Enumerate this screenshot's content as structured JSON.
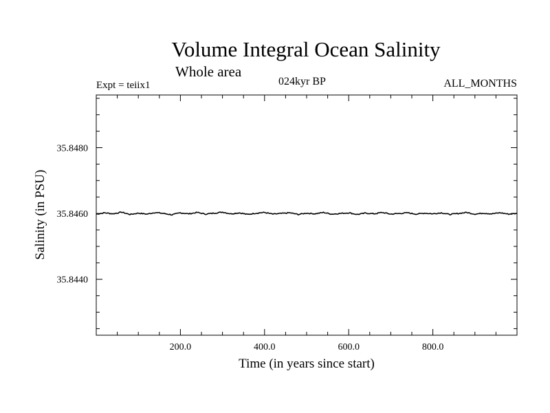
{
  "chart_data": {
    "type": "line",
    "title": "Volume Integral Ocean Salinity",
    "subtitle": "Whole area",
    "annotations": {
      "left": "Expt = teiix1",
      "center": "024kyr BP",
      "right": "ALL_MONTHS"
    },
    "xlabel": "Time (in years since start)",
    "ylabel": "Salinity (in PSU)",
    "xlim": [
      0,
      1000
    ],
    "ylim": [
      35.8423,
      35.8496
    ],
    "xticks": [
      {
        "value": 200,
        "label": "200.0"
      },
      {
        "value": 400,
        "label": "400.0"
      },
      {
        "value": 600,
        "label": "600.0"
      },
      {
        "value": 800,
        "label": "800.0"
      }
    ],
    "yticks": [
      {
        "value": 35.844,
        "label": "35.8440"
      },
      {
        "value": 35.846,
        "label": "35.8460"
      },
      {
        "value": 35.848,
        "label": "35.8480"
      }
    ],
    "grid": false,
    "series": [
      {
        "color": "#000000",
        "x": [
          0,
          20,
          40,
          60,
          80,
          100,
          120,
          140,
          160,
          180,
          200,
          220,
          240,
          260,
          280,
          300,
          320,
          340,
          360,
          380,
          400,
          420,
          440,
          460,
          480,
          500,
          520,
          540,
          560,
          580,
          600,
          620,
          640,
          660,
          680,
          700,
          720,
          740,
          760,
          780,
          800,
          820,
          840,
          860,
          880,
          900,
          920,
          940,
          960,
          980,
          1000
        ],
        "y": [
          35.84598,
          35.84602,
          35.84599,
          35.84604,
          35.84597,
          35.84601,
          35.84598,
          35.84603,
          35.846,
          35.84596,
          35.84602,
          35.84599,
          35.84603,
          35.84598,
          35.84601,
          35.84604,
          35.84599,
          35.84602,
          35.84597,
          35.84601,
          35.84603,
          35.84598,
          35.846,
          35.84602,
          35.84597,
          35.84601,
          35.84599,
          35.84603,
          35.84598,
          35.846,
          35.84602,
          35.84597,
          35.84601,
          35.84599,
          35.84603,
          35.84598,
          35.846,
          35.84602,
          35.84598,
          35.84601,
          35.84599,
          35.84602,
          35.84597,
          35.846,
          35.84603,
          35.84598,
          35.84601,
          35.84599,
          35.84602,
          35.84598,
          35.846
        ]
      }
    ]
  }
}
